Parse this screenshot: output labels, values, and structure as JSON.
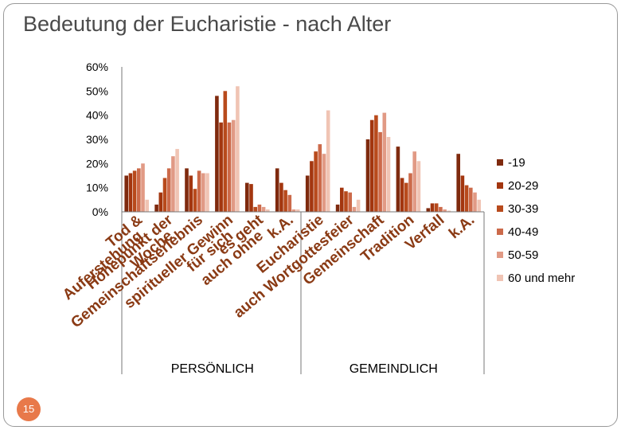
{
  "title": "Bedeutung der Eucharistie - nach Alter",
  "page_number": "15",
  "chart_data": {
    "type": "bar",
    "title": "Bedeutung der Eucharistie - nach Alter",
    "ylim": [
      0,
      60
    ],
    "yticks": [
      "0%",
      "10%",
      "20%",
      "30%",
      "40%",
      "50%",
      "60%"
    ],
    "ytick_values": [
      0,
      10,
      20,
      30,
      40,
      50,
      60
    ],
    "grid": false,
    "legend_position": "right",
    "categories": [
      "Tod & Auferstehung",
      "Höhepunkt der Woche",
      "Gemeinschaftserlebnis",
      "spiritueller Gewinn für sich",
      "es geht auch ohne",
      "k.A.",
      "Eucharistie",
      "auch Wortgottesfeier",
      "Gemeinschaft",
      "Tradition",
      "Verfall",
      "k.A."
    ],
    "groups": [
      {
        "label": "PERSÖNLICH",
        "from": 0,
        "to": 5
      },
      {
        "label": "GEMEINDLICH",
        "from": 6,
        "to": 11
      }
    ],
    "series": [
      {
        "name": "-19",
        "color": "#7f2a0e",
        "values": [
          15,
          3,
          18,
          48,
          12,
          18,
          15,
          3,
          30,
          27,
          1.5,
          24
        ]
      },
      {
        "name": "20-29",
        "color": "#a3360f",
        "values": [
          16,
          8,
          15,
          37,
          11.5,
          12,
          21,
          10,
          38,
          14,
          3.5,
          15
        ]
      },
      {
        "name": "30-39",
        "color": "#b84a1c",
        "values": [
          17,
          14,
          9.5,
          50,
          2,
          9,
          25,
          8.5,
          40,
          12,
          3.5,
          11
        ]
      },
      {
        "name": "40-49",
        "color": "#cc6a4a",
        "values": [
          18,
          18,
          17,
          37,
          3,
          7,
          28,
          8,
          33,
          16,
          2,
          10
        ]
      },
      {
        "name": "50-59",
        "color": "#e19a85",
        "values": [
          20,
          23,
          16,
          38,
          2,
          1,
          24,
          2,
          41,
          25,
          1,
          8
        ]
      },
      {
        "name": "60 und mehr",
        "color": "#f0c4b4",
        "values": [
          5,
          26,
          16,
          52,
          1,
          1,
          42,
          5,
          31,
          21,
          0.5,
          5
        ]
      }
    ]
  }
}
